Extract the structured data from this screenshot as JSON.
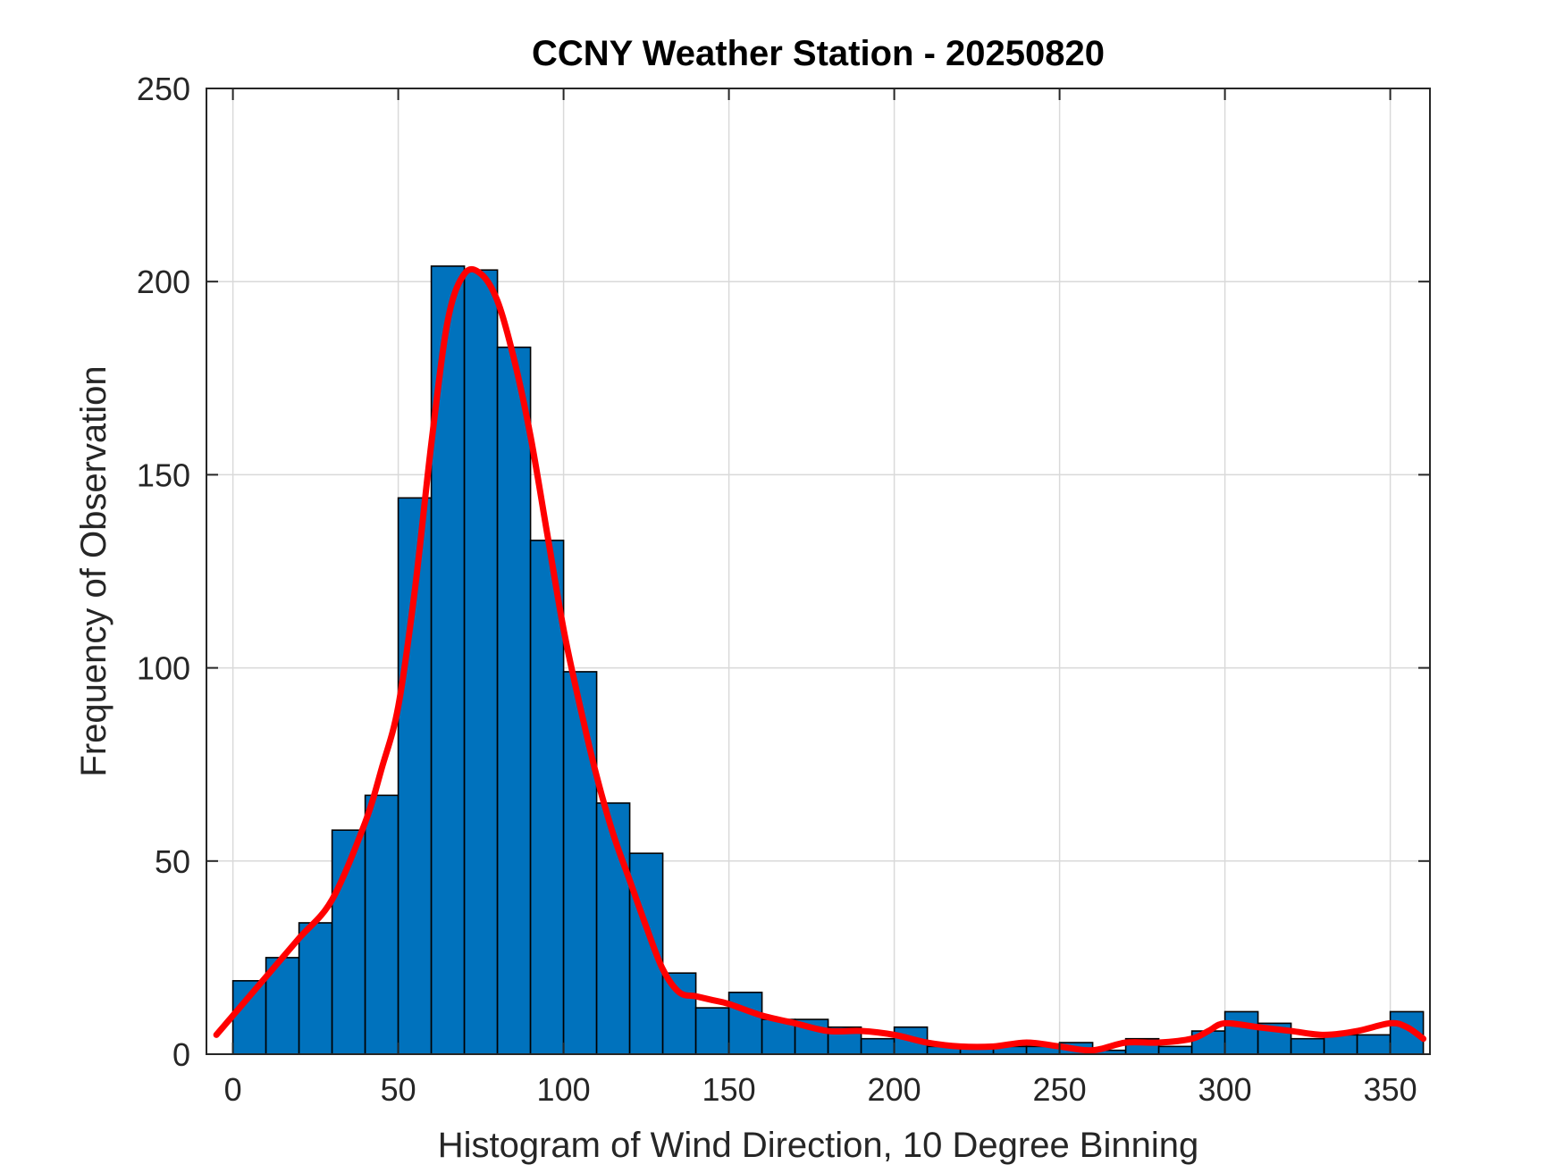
{
  "chart_data": {
    "type": "bar",
    "title": "CCNY Weather Station - 20250820",
    "xlabel": "Histogram of Wind Direction, 10 Degree Binning",
    "ylabel": "Frequency of Observation",
    "xlim": [
      -8,
      362
    ],
    "ylim": [
      0,
      250
    ],
    "xticks": [
      0,
      50,
      100,
      150,
      200,
      250,
      300,
      350
    ],
    "yticks": [
      0,
      50,
      100,
      150,
      200,
      250
    ],
    "grid": true,
    "bin_width": 10,
    "bin_edges": [
      0,
      10,
      20,
      30,
      40,
      50,
      60,
      70,
      80,
      90,
      100,
      110,
      120,
      130,
      140,
      150,
      160,
      170,
      180,
      190,
      200,
      210,
      220,
      230,
      240,
      250,
      260,
      270,
      280,
      290,
      300,
      310,
      320,
      330,
      340,
      350,
      360
    ],
    "values": [
      19,
      25,
      34,
      58,
      67,
      144,
      204,
      203,
      183,
      133,
      99,
      65,
      52,
      21,
      12,
      16,
      9,
      9,
      7,
      4,
      7,
      2,
      2,
      2,
      2,
      3,
      1,
      4,
      2,
      6,
      11,
      8,
      4,
      5,
      5,
      11
    ],
    "series": [
      {
        "type": "line",
        "color": "#FF0000",
        "x": [
          -5,
          0,
          10,
          20,
          30,
          40,
          45,
          50,
          55,
          60,
          65,
          70,
          75,
          80,
          85,
          90,
          95,
          100,
          105,
          110,
          115,
          120,
          125,
          130,
          135,
          140,
          145,
          150,
          160,
          170,
          180,
          190,
          200,
          210,
          220,
          230,
          240,
          250,
          260,
          270,
          280,
          290,
          295,
          300,
          310,
          320,
          330,
          340,
          350,
          355,
          360
        ],
        "y": [
          5,
          10,
          20,
          30,
          40,
          60,
          74,
          90,
          120,
          158,
          190,
          202,
          202,
          195,
          180,
          160,
          135,
          110,
          90,
          72,
          57,
          45,
          33,
          22,
          16,
          15,
          14,
          13,
          10,
          8,
          6,
          6,
          5,
          3,
          2,
          2,
          3,
          2,
          1,
          3,
          3,
          4,
          6,
          8,
          7,
          6,
          5,
          6,
          8,
          7,
          4
        ]
      }
    ],
    "colors": {
      "bars": "#0072BD",
      "curve": "#FF0000"
    }
  }
}
